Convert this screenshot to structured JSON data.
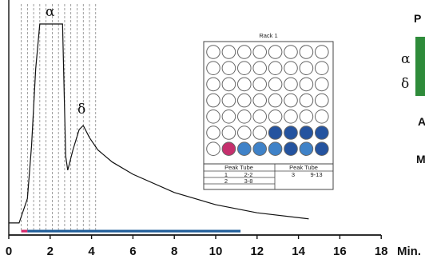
{
  "chart_data": {
    "type": "line",
    "xlabel": "Min.",
    "x_ticks": [
      "0",
      "2",
      "4",
      "6",
      "8",
      "10",
      "12",
      "14",
      "16",
      "18"
    ],
    "xlim": [
      0,
      18
    ],
    "grid": false,
    "peaks": [
      {
        "label": "α",
        "x": 2.0,
        "note": "flat-topped (saturated)"
      },
      {
        "label": "δ",
        "x": 3.5
      }
    ],
    "fraction_lines_x": [
      0.6,
      0.9,
      1.2,
      1.5,
      1.8,
      2.1,
      2.4,
      2.7,
      3.0,
      3.3,
      3.6,
      3.9,
      4.2
    ],
    "collection_bars": [
      {
        "from": 0.6,
        "to": 0.9,
        "color": "#d4276b"
      },
      {
        "from": 0.9,
        "to": 11.2,
        "color": "#1f5d99"
      }
    ],
    "trace": {
      "x": [
        0,
        0.5,
        0.7,
        0.9,
        1.1,
        1.3,
        1.5,
        1.6,
        2.6,
        2.75,
        2.85,
        3.1,
        3.4,
        3.6,
        3.9,
        4.3,
        5,
        6,
        8,
        10,
        12,
        14.5
      ],
      "y": [
        2,
        2,
        8,
        14,
        40,
        78,
        100,
        100,
        100,
        35,
        28,
        38,
        48,
        50,
        44,
        38,
        32,
        26,
        17,
        11,
        7,
        4
      ]
    }
  },
  "rack": {
    "title": "Rack 1",
    "rows": [
      [
        "empty",
        "empty",
        "empty",
        "empty",
        "empty",
        "empty",
        "empty",
        "empty"
      ],
      [
        "empty",
        "empty",
        "empty",
        "empty",
        "empty",
        "empty",
        "empty",
        "empty"
      ],
      [
        "empty",
        "empty",
        "empty",
        "empty",
        "empty",
        "empty",
        "empty",
        "empty"
      ],
      [
        "empty",
        "empty",
        "empty",
        "empty",
        "empty",
        "empty",
        "empty",
        "empty"
      ],
      [
        "empty",
        "empty",
        "empty",
        "empty",
        "empty",
        "empty",
        "empty",
        "empty"
      ],
      [
        "empty",
        "empty",
        "empty",
        "empty",
        "dark",
        "dark",
        "dark",
        "dark"
      ],
      [
        "empty",
        "pink",
        "mid",
        "mid",
        "mid",
        "dark",
        "mid",
        "dark"
      ]
    ],
    "colors": {
      "empty": "#ffffff",
      "dark": "#24539f",
      "mid": "#3f82c8",
      "pink": "#c52f6d"
    },
    "table": {
      "headers": [
        "Peak Tube",
        "Peak Tube"
      ],
      "rows": [
        [
          "1",
          "2-2",
          "3",
          "9-13"
        ],
        [
          "2",
          "3-8",
          "",
          ""
        ]
      ]
    }
  },
  "side_panel": {
    "title": "P",
    "alpha": "α",
    "delta": "δ",
    "letter_a": "A",
    "letter_m": "M",
    "green": "#2e8b3a"
  }
}
